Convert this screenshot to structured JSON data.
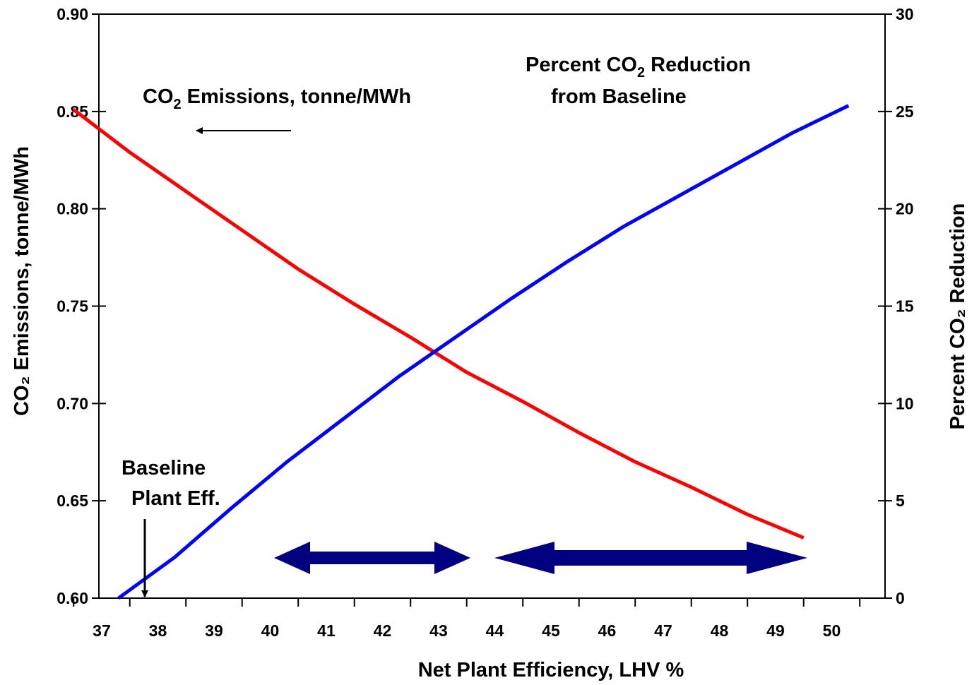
{
  "chart_data": {
    "type": "line",
    "title": "",
    "xlabel": "Net Plant Efficiency, LHV %",
    "ylabel": "CO₂ Emissions, tonne/MWh",
    "ylabel_right": "Percent CO₂ Reduction",
    "xlim": [
      36.95,
      50.95
    ],
    "ylim": [
      0.6,
      0.9
    ],
    "ylim_right": [
      0,
      30
    ],
    "x_ticks": [
      37,
      38,
      39,
      40,
      41,
      42,
      43,
      44,
      45,
      46,
      47,
      48,
      49,
      50
    ],
    "y_ticks": [
      "0.60",
      "0.65",
      "0.70",
      "0.75",
      "0.80",
      "0.85",
      "0.90"
    ],
    "y_ticks_right": [
      "0",
      "5",
      "10",
      "15",
      "20",
      "25",
      "30"
    ],
    "grid": false,
    "series": [
      {
        "axis": "left",
        "color": "#ff0000",
        "x": [
          36.5,
          37.5,
          38.5,
          39.5,
          40.5,
          41.5,
          42.5,
          43.5,
          44.5,
          45.5,
          46.5,
          47.5,
          48.5,
          49.5
        ],
        "y": [
          0.851,
          0.829,
          0.809,
          0.789,
          0.769,
          0.751,
          0.734,
          0.716,
          0.701,
          0.685,
          0.67,
          0.657,
          0.643,
          0.631
        ]
      },
      {
        "axis": "right",
        "color": "#0000ff",
        "x": [
          37.3,
          38.3,
          39.3,
          40.3,
          41.3,
          42.3,
          43.3,
          44.3,
          45.3,
          46.3,
          47.3,
          48.3,
          49.3,
          50.3
        ],
        "y": [
          0.0,
          2.1,
          4.6,
          7.0,
          9.2,
          11.4,
          13.4,
          15.4,
          17.3,
          19.1,
          20.7,
          22.3,
          23.9,
          25.3
        ]
      }
    ],
    "annotations": {
      "emissions_label": {
        "text": "CO",
        "sub": "2",
        "rest": " Emissions, tonne/MWh"
      },
      "reduction_label": {
        "line1_text": "Percent CO",
        "line1_sub": "2",
        "line1_rest": " Reduction",
        "line2": "from Baseline"
      },
      "baseline_label": {
        "line1": "Baseline",
        "line2": "Plant Eff."
      }
    },
    "arrow_color": "#000080"
  }
}
